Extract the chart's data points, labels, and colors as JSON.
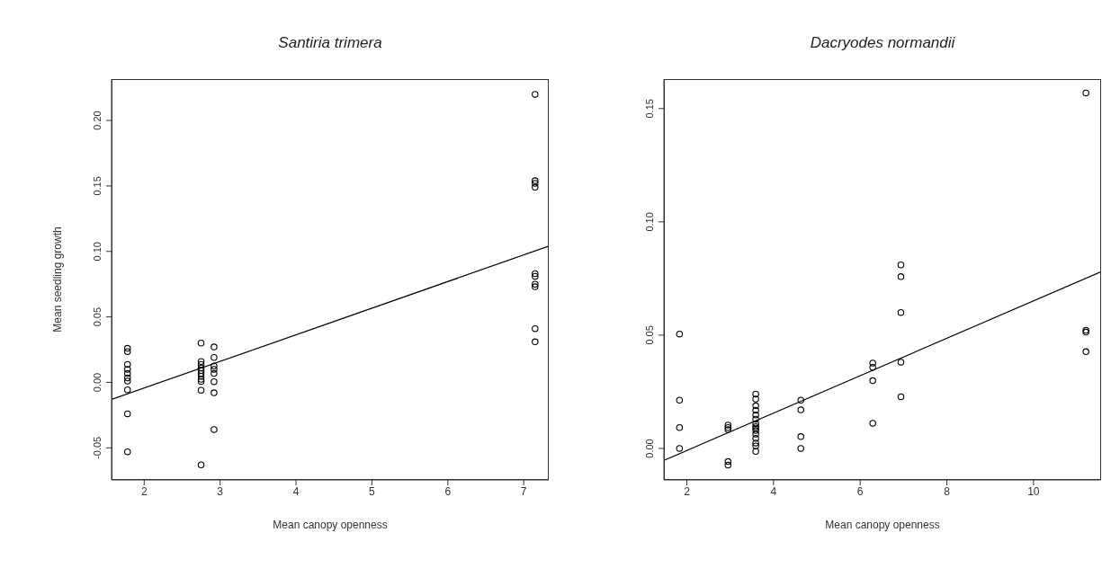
{
  "chart_data": [
    {
      "type": "scatter",
      "title": "Santiria trimera",
      "xlabel": "Mean canopy openness",
      "ylabel": "Mean seedling growth",
      "xlim": [
        1.57,
        7.33
      ],
      "ylim": [
        -0.0745,
        0.2316
      ],
      "xticks": [
        2,
        3,
        4,
        5,
        6,
        7
      ],
      "yticks": [
        {
          "value": -0.05,
          "label": "-0.05"
        },
        {
          "value": 0,
          "label": "0.00"
        },
        {
          "value": 0.05,
          "label": "0.05"
        },
        {
          "value": 0.1,
          "label": "0.10"
        },
        {
          "value": 0.15,
          "label": "0.15"
        },
        {
          "value": 0.2,
          "label": "0.20"
        }
      ],
      "series": [
        {
          "marker": "circle",
          "color": "#000000",
          "x": [
            1.78,
            1.78,
            1.78,
            1.78,
            1.78,
            1.78,
            1.78,
            1.78,
            1.78,
            1.78,
            2.75,
            2.75,
            2.75,
            2.75,
            2.75,
            2.75,
            2.75,
            2.75,
            2.75,
            2.75,
            2.75,
            2.92,
            2.92,
            2.92,
            2.92,
            2.92,
            2.92,
            2.92,
            2.92,
            7.15,
            7.15,
            7.15,
            7.15,
            7.15,
            7.15,
            7.15,
            7.15,
            7.15,
            7.15
          ],
          "values": [
            0.026,
            0.0235,
            0.0137,
            0.01,
            0.0068,
            0.0034,
            0.001,
            -0.0057,
            -0.024,
            -0.053,
            0.03,
            0.016,
            0.0137,
            0.011,
            0.009,
            0.0068,
            0.0046,
            0.0023,
            0.0007,
            -0.006,
            -0.063,
            0.027,
            0.019,
            0.0125,
            0.01,
            0.0068,
            0.0005,
            -0.008,
            -0.036,
            0.22,
            0.154,
            0.152,
            0.149,
            0.083,
            0.081,
            0.075,
            0.073,
            0.041,
            0.031
          ]
        },
        {
          "type": "line",
          "color": "#000000",
          "line_style": "solid",
          "x": [
            1.57,
            7.33
          ],
          "values": [
            -0.013,
            0.104
          ]
        }
      ]
    },
    {
      "type": "scatter",
      "title": "Dacryodes normandii",
      "xlabel": "Mean canopy openness",
      "xlim": [
        1.47,
        11.56
      ],
      "ylim": [
        -0.0139,
        0.163
      ],
      "xticks": [
        2,
        4,
        6,
        8,
        10
      ],
      "yticks": [
        {
          "value": 0,
          "label": "0.00"
        },
        {
          "value": 0.05,
          "label": "0.05"
        },
        {
          "value": 0.1,
          "label": "0.10"
        },
        {
          "value": 0.15,
          "label": "0.15"
        }
      ],
      "series": [
        {
          "marker": "circle",
          "color": "#000000",
          "x": [
            1.83,
            1.83,
            1.83,
            1.83,
            2.95,
            2.95,
            2.95,
            2.95,
            2.95,
            3.59,
            3.59,
            3.59,
            3.59,
            3.59,
            3.59,
            3.59,
            3.59,
            3.59,
            3.59,
            3.59,
            3.59,
            3.59,
            3.59,
            3.59,
            4.63,
            4.63,
            4.63,
            4.63,
            6.29,
            6.29,
            6.29,
            6.29,
            6.94,
            6.94,
            6.94,
            6.94,
            6.94,
            11.21,
            11.21,
            11.21,
            11.21
          ],
          "values": [
            0.0505,
            0.0213,
            0.0092,
            0,
            0.0103,
            0.0092,
            0.0083,
            -0.0058,
            -0.0074,
            0.024,
            0.0218,
            0.0188,
            0.0168,
            0.0148,
            0.0129,
            0.0109,
            0.0096,
            0.0089,
            0.0079,
            0.0063,
            0.0044,
            0.0024,
            0.0011,
            -0.0013,
            0.0213,
            0.017,
            0.0052,
            0,
            0.0377,
            0.0358,
            0.0299,
            0.0111,
            0.081,
            0.0758,
            0.06,
            0.0381,
            0.0228,
            0.1569,
            0.0521,
            0.0513,
            0.0427
          ]
        },
        {
          "type": "line",
          "color": "#000000",
          "line_style": "solid",
          "x": [
            1.47,
            11.56
          ],
          "values": [
            -0.0053,
            0.078
          ]
        }
      ]
    }
  ]
}
